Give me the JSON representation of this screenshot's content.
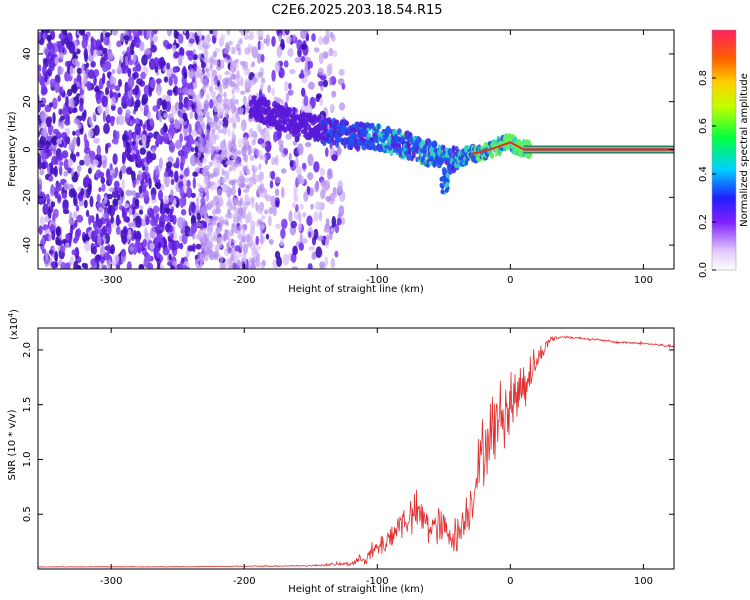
{
  "title": "C2E6.2025.203.18.54.R15",
  "chart_data": [
    {
      "type": "heatmap",
      "xlabel": "Height of straight line (km)",
      "ylabel": "Frequency (Hz)",
      "xlim": [
        -355,
        123
      ],
      "ylim": [
        -50,
        50
      ],
      "x_ticks": [
        -300,
        -200,
        -100,
        0,
        100
      ],
      "x_tick_labels": [
        "-300",
        "-200",
        "-100",
        "0",
        "100"
      ],
      "y_ticks": [
        -40,
        -20,
        0,
        20,
        40
      ],
      "y_tick_labels": [
        "-40",
        "-20",
        "0",
        "20",
        "40"
      ],
      "colorbar": {
        "label": "Normalized spectral amplitude",
        "range": [
          0,
          1
        ],
        "ticks": [
          0.0,
          0.2,
          0.4,
          0.6,
          0.8
        ],
        "tick_labels": [
          "0.0",
          "0.2",
          "0.4",
          "0.6",
          "0.8"
        ]
      },
      "ridge": {
        "x": [
          -190,
          -175,
          -160,
          -140,
          -120,
          -100,
          -80,
          -60,
          -45,
          -30,
          -15,
          0,
          10,
          123
        ],
        "y": [
          17,
          14,
          11,
          8,
          6,
          5,
          2,
          -2,
          -5,
          -2,
          0,
          3,
          0,
          0
        ],
        "amplitude": [
          0.3,
          0.3,
          0.25,
          0.35,
          0.45,
          0.5,
          0.55,
          0.55,
          0.5,
          0.6,
          0.75,
          0.85,
          0.9,
          0.95
        ]
      },
      "noise_region": {
        "x": [
          -355,
          -125
        ],
        "y": [
          -50,
          50
        ]
      },
      "grid": false
    },
    {
      "type": "line",
      "xlabel": "Height of straight line (km)",
      "ylabel": "SNR (10 * v/v)",
      "y_multiplier_label": "(x10",
      "y_multiplier_exp": "4",
      "y_multiplier_close": ")",
      "xlim": [
        -355,
        123
      ],
      "ylim": [
        0,
        2.2
      ],
      "x_ticks": [
        -300,
        -200,
        -100,
        0,
        100
      ],
      "x_tick_labels": [
        "-300",
        "-200",
        "-100",
        "0",
        "100"
      ],
      "y_ticks": [
        0.5,
        1.0,
        1.5,
        2.0
      ],
      "y_tick_labels": [
        "0.5",
        "1.0",
        "1.5",
        "2.0"
      ],
      "series": [
        {
          "color": "#e03030",
          "x": [
            -355,
            -250,
            -150,
            -120,
            -110,
            -100,
            -90,
            -80,
            -70,
            -60,
            -50,
            -40,
            -30,
            -25,
            -20,
            -10,
            0,
            10,
            20,
            30,
            40,
            60,
            80,
            100,
            123
          ],
          "y": [
            0.02,
            0.02,
            0.03,
            0.05,
            0.1,
            0.18,
            0.3,
            0.45,
            0.5,
            0.4,
            0.35,
            0.3,
            0.6,
            0.85,
            1.1,
            1.35,
            1.5,
            1.7,
            1.9,
            2.1,
            2.12,
            2.1,
            2.07,
            2.06,
            2.03
          ],
          "noise": [
            0.003,
            0.003,
            0.005,
            0.02,
            0.05,
            0.1,
            0.12,
            0.15,
            0.18,
            0.18,
            0.18,
            0.15,
            0.2,
            0.25,
            0.3,
            0.3,
            0.3,
            0.25,
            0.1,
            0.03,
            0.01,
            0.01,
            0.01,
            0.01,
            0.01
          ]
        }
      ],
      "grid": false
    }
  ],
  "colors": {
    "frame": "#000000",
    "line": "#e03030",
    "ridge_core": "#d03020",
    "ridge_mid": "#40e0a0",
    "noise_dark": "#5a1ad8",
    "noise_light": "#c8a8f4"
  }
}
